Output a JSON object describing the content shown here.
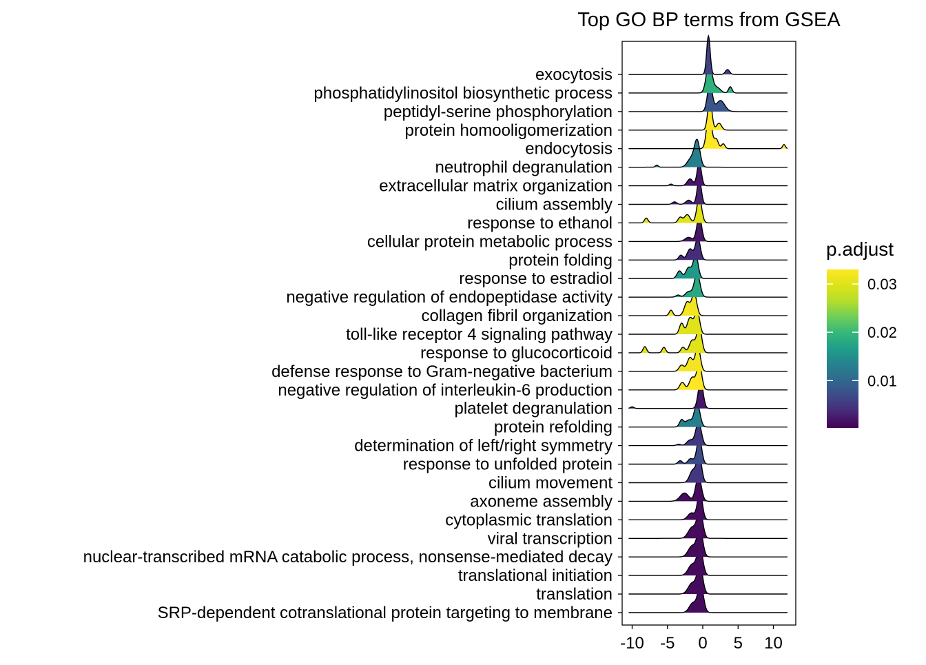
{
  "chart_data": {
    "type": "ridgeline",
    "title": "Top GO BP terms from GSEA",
    "xlabel": "",
    "ylabel": "",
    "xlim": [
      -11.5,
      13
    ],
    "x_ticks": [
      -10,
      -5,
      0,
      5,
      10
    ],
    "x_tick_labels": [
      "-10",
      "-5",
      "0",
      "5",
      "10"
    ],
    "grid": false,
    "legend_position": "right",
    "colorbar": {
      "title": "p.adjust",
      "min": 0.0002,
      "max": 0.033,
      "ticks": [
        0.01,
        0.02,
        0.03
      ],
      "tick_labels": [
        "0.01",
        "0.02",
        "0.03"
      ],
      "palette": "viridis"
    },
    "terms": [
      {
        "label": "exocytosis",
        "p_adjust": 0.006,
        "range": [
          -10.5,
          12
        ],
        "peaks": [
          [
            0.8,
            0.25,
            2.8
          ],
          [
            3.5,
            0.3,
            0.35
          ]
        ]
      },
      {
        "label": "phosphatidylinositol biosynthetic process",
        "p_adjust": 0.019,
        "range": [
          -10.5,
          12
        ],
        "peaks": [
          [
            0.9,
            0.4,
            2.2
          ],
          [
            2.0,
            0.5,
            0.4
          ],
          [
            3.9,
            0.25,
            0.45
          ]
        ]
      },
      {
        "label": "peptidyl-serine phosphorylation",
        "p_adjust": 0.008,
        "range": [
          -10.5,
          12
        ],
        "peaks": [
          [
            1.0,
            0.35,
            2.0
          ],
          [
            2.5,
            0.6,
            0.8
          ]
        ]
      },
      {
        "label": "protein homooligomerization",
        "p_adjust": 0.033,
        "range": [
          -10.5,
          12
        ],
        "peaks": [
          [
            1.0,
            0.3,
            2.2
          ],
          [
            2.3,
            0.35,
            0.5
          ]
        ]
      },
      {
        "label": "endocytosis",
        "p_adjust": 0.033,
        "range": [
          -10.5,
          12
        ],
        "peaks": [
          [
            0.9,
            0.35,
            2.6
          ],
          [
            1.9,
            0.3,
            0.7
          ],
          [
            2.9,
            0.25,
            0.35
          ],
          [
            11.5,
            0.2,
            0.3
          ]
        ]
      },
      {
        "label": "neutrophil degranulation",
        "p_adjust": 0.013,
        "range": [
          -10.5,
          12
        ],
        "peaks": [
          [
            -0.8,
            0.4,
            1.9
          ],
          [
            -1.7,
            0.5,
            0.6
          ],
          [
            -6.5,
            0.2,
            0.15
          ]
        ]
      },
      {
        "label": "extracellular matrix organization",
        "p_adjust": 0.002,
        "range": [
          -10.5,
          12
        ],
        "peaks": [
          [
            -0.5,
            0.3,
            1.7
          ],
          [
            -1.8,
            0.4,
            0.5
          ],
          [
            -4.5,
            0.25,
            0.12
          ]
        ]
      },
      {
        "label": "cilium assembly",
        "p_adjust": 0.003,
        "range": [
          -10.5,
          12
        ],
        "peaks": [
          [
            -0.5,
            0.3,
            1.8
          ],
          [
            -2.0,
            0.4,
            0.3
          ],
          [
            -4.0,
            0.3,
            0.18
          ]
        ]
      },
      {
        "label": "response to ethanol",
        "p_adjust": 0.03,
        "range": [
          -10.5,
          12
        ],
        "peaks": [
          [
            -0.5,
            0.35,
            1.8
          ],
          [
            -2.2,
            0.4,
            0.6
          ],
          [
            -3.2,
            0.3,
            0.4
          ],
          [
            -8.0,
            0.25,
            0.35
          ]
        ]
      },
      {
        "label": "cellular protein metabolic process",
        "p_adjust": 0.002,
        "range": [
          -10.5,
          12
        ],
        "peaks": [
          [
            -0.5,
            0.35,
            1.8
          ],
          [
            -2.0,
            0.5,
            0.3
          ]
        ]
      },
      {
        "label": "protein folding",
        "p_adjust": 0.004,
        "range": [
          -10.5,
          12
        ],
        "peaks": [
          [
            -0.7,
            0.35,
            1.6
          ],
          [
            -1.8,
            0.4,
            0.8
          ],
          [
            -3.1,
            0.3,
            0.35
          ]
        ]
      },
      {
        "label": "response to estradiol",
        "p_adjust": 0.016,
        "range": [
          -10.5,
          12
        ],
        "peaks": [
          [
            -1.0,
            0.35,
            1.7
          ],
          [
            -2.0,
            0.4,
            0.8
          ],
          [
            -3.3,
            0.35,
            0.55
          ]
        ]
      },
      {
        "label": "negative regulation of endopeptidase activity",
        "p_adjust": 0.018,
        "range": [
          -10.5,
          12
        ],
        "peaks": [
          [
            -0.8,
            0.4,
            1.7
          ],
          [
            -2.0,
            0.45,
            0.4
          ],
          [
            -3.5,
            0.3,
            0.15
          ]
        ]
      },
      {
        "label": "collagen fibril organization",
        "p_adjust": 0.032,
        "range": [
          -10.5,
          12
        ],
        "peaks": [
          [
            -1.2,
            0.35,
            1.6
          ],
          [
            -2.2,
            0.4,
            1.0
          ],
          [
            -4.5,
            0.25,
            0.4
          ]
        ]
      },
      {
        "label": "toll-like receptor 4 signaling pathway",
        "p_adjust": 0.03,
        "range": [
          -10.5,
          12
        ],
        "peaks": [
          [
            -0.8,
            0.35,
            1.7
          ],
          [
            -1.8,
            0.4,
            1.2
          ],
          [
            -3.0,
            0.3,
            0.8
          ]
        ]
      },
      {
        "label": "response to glucocorticoid",
        "p_adjust": 0.03,
        "range": [
          -10.5,
          12
        ],
        "peaks": [
          [
            -0.5,
            0.35,
            1.9
          ],
          [
            -1.5,
            0.4,
            0.9
          ],
          [
            -2.8,
            0.3,
            0.4
          ],
          [
            -5.5,
            0.25,
            0.4
          ],
          [
            -8.2,
            0.25,
            0.45
          ]
        ]
      },
      {
        "label": "defense response to Gram-negative bacterium",
        "p_adjust": 0.032,
        "range": [
          -10.5,
          12
        ],
        "peaks": [
          [
            -0.7,
            0.35,
            1.8
          ],
          [
            -1.8,
            0.4,
            1.0
          ],
          [
            -3.0,
            0.35,
            0.45
          ]
        ]
      },
      {
        "label": "negative regulation of interleukin-6 production",
        "p_adjust": 0.033,
        "range": [
          -10.5,
          12
        ],
        "peaks": [
          [
            -0.5,
            0.35,
            1.9
          ],
          [
            -1.5,
            0.4,
            0.9
          ],
          [
            -2.9,
            0.35,
            0.55
          ]
        ]
      },
      {
        "label": "platelet degranulation",
        "p_adjust": 0.002,
        "range": [
          -10.5,
          12
        ],
        "peaks": [
          [
            -0.3,
            0.35,
            2.0
          ],
          [
            -10.0,
            0.25,
            0.12
          ]
        ]
      },
      {
        "label": "protein refolding",
        "p_adjust": 0.013,
        "range": [
          -10.5,
          12
        ],
        "peaks": [
          [
            -0.8,
            0.4,
            1.7
          ],
          [
            -2.0,
            0.45,
            0.5
          ],
          [
            -3.0,
            0.3,
            0.5
          ]
        ]
      },
      {
        "label": "determination of left/right symmetry",
        "p_adjust": 0.005,
        "range": [
          -10.5,
          12
        ],
        "peaks": [
          [
            -0.6,
            0.4,
            1.7
          ],
          [
            -1.8,
            0.45,
            0.4
          ],
          [
            -3.4,
            0.3,
            0.1
          ]
        ]
      },
      {
        "label": "response to unfolded protein",
        "p_adjust": 0.007,
        "range": [
          -10.5,
          12
        ],
        "peaks": [
          [
            -0.5,
            0.35,
            1.9
          ],
          [
            -1.7,
            0.4,
            0.4
          ],
          [
            -3.2,
            0.3,
            0.25
          ]
        ]
      },
      {
        "label": "cilium movement",
        "p_adjust": 0.005,
        "range": [
          -10.5,
          12
        ],
        "peaks": [
          [
            -0.5,
            0.35,
            1.9
          ],
          [
            -1.4,
            0.45,
            0.9
          ]
        ]
      },
      {
        "label": "axoneme assembly",
        "p_adjust": 0.001,
        "range": [
          -10.5,
          12
        ],
        "peaks": [
          [
            -0.6,
            0.4,
            1.8
          ],
          [
            -2.6,
            0.6,
            0.6
          ]
        ]
      },
      {
        "label": "cytoplasmic translation",
        "p_adjust": 0.001,
        "range": [
          -10.5,
          12
        ],
        "peaks": [
          [
            -0.4,
            0.35,
            2.0
          ],
          [
            -1.6,
            0.5,
            0.5
          ]
        ]
      },
      {
        "label": "viral transcription",
        "p_adjust": 0.001,
        "range": [
          -10.5,
          12
        ],
        "peaks": [
          [
            -0.4,
            0.4,
            2.0
          ],
          [
            -1.5,
            0.55,
            0.8
          ]
        ]
      },
      {
        "label": "nuclear-transcribed mRNA catabolic process, nonsense-mediated decay",
        "p_adjust": 0.001,
        "range": [
          -10.5,
          12
        ],
        "peaks": [
          [
            -0.4,
            0.4,
            2.0
          ],
          [
            -1.5,
            0.55,
            0.8
          ]
        ]
      },
      {
        "label": "translational initiation",
        "p_adjust": 0.001,
        "range": [
          -10.5,
          12
        ],
        "peaks": [
          [
            -0.4,
            0.4,
            2.0
          ],
          [
            -1.5,
            0.55,
            0.8
          ]
        ]
      },
      {
        "label": "translation",
        "p_adjust": 0.001,
        "range": [
          -10.5,
          12
        ],
        "peaks": [
          [
            -0.4,
            0.4,
            2.0
          ],
          [
            -1.5,
            0.55,
            0.8
          ]
        ]
      },
      {
        "label": "SRP-dependent cotranslational protein targeting to membrane",
        "p_adjust": 0.001,
        "range": [
          -10.5,
          12
        ],
        "peaks": [
          [
            -0.3,
            0.4,
            2.0
          ],
          [
            -1.4,
            0.5,
            0.7
          ]
        ]
      }
    ]
  }
}
